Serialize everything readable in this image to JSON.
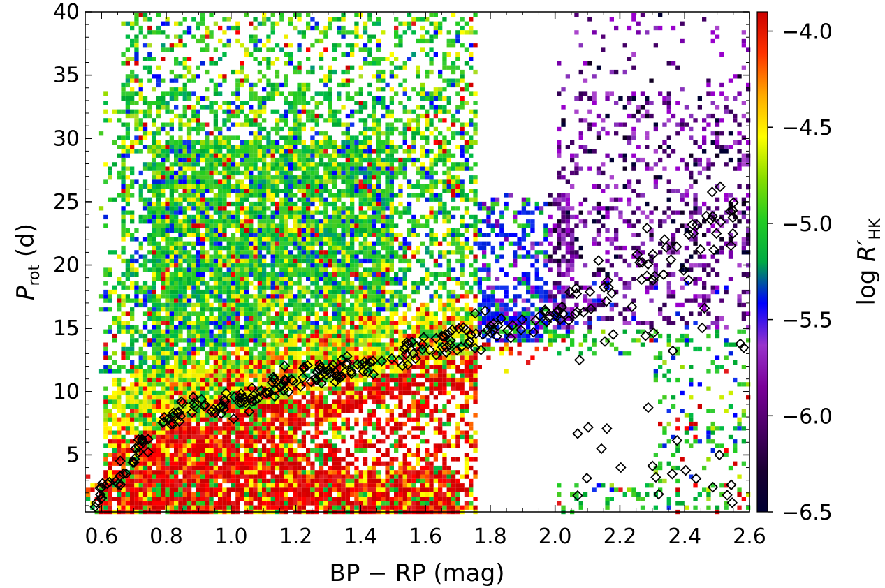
{
  "chart_data": {
    "type": "heatmap",
    "xlabel": "BP − RP (mag)",
    "ylabel_main": "P",
    "ylabel_sub": "rot",
    "ylabel_unit": " (d)",
    "colorbar_label_main": "log ",
    "colorbar_label_r": "R′",
    "colorbar_label_sub": "HK",
    "xlim": [
      0.55,
      2.6
    ],
    "ylim": [
      0.5,
      40
    ],
    "x_ticks": [
      0.6,
      0.8,
      1.0,
      1.2,
      1.4,
      1.6,
      1.8,
      2.0,
      2.2,
      2.4,
      2.6
    ],
    "x_tick_labels": [
      "0.6",
      "0.8",
      "1.0",
      "1.2",
      "1.4",
      "1.6",
      "1.8",
      "2.0",
      "2.2",
      "2.4",
      "2.6"
    ],
    "y_ticks": [
      5,
      10,
      15,
      20,
      25,
      30,
      35,
      40
    ],
    "y_tick_labels": [
      "5",
      "10",
      "15",
      "20",
      "25",
      "30",
      "35",
      "40"
    ],
    "colorbar": {
      "range": [
        -6.5,
        -3.9
      ],
      "ticks": [
        -4.0,
        -4.5,
        -5.0,
        -5.5,
        -6.0,
        -6.5
      ],
      "tick_labels": [
        "−4.0",
        "−4.5",
        "−5.0",
        "−5.5",
        "−6.0",
        "−6.5"
      ],
      "colors": [
        "#000033",
        "#1a0033",
        "#4a0066",
        "#7a0099",
        "#9933cc",
        "#0000ff",
        "#00aa44",
        "#22cc22",
        "#88dd00",
        "#ffff00",
        "#ffaa00",
        "#ff3300",
        "#cc0000"
      ]
    },
    "trend_x": [
      0.58,
      0.62,
      0.66,
      0.7,
      0.75,
      0.8,
      0.85,
      0.9,
      0.95,
      1.0,
      1.05,
      1.1,
      1.15,
      1.2,
      1.25,
      1.3,
      1.35,
      1.4,
      1.45,
      1.5,
      1.55,
      1.6,
      1.65,
      1.7,
      1.75,
      1.8,
      1.85,
      1.9,
      1.95,
      2.0,
      2.05,
      2.1,
      2.15,
      2.2,
      2.25,
      2.3,
      2.35,
      2.4,
      2.45,
      2.5,
      2.55
    ],
    "trend_y": [
      1.5,
      2.5,
      3.5,
      5.0,
      6.5,
      7.8,
      8.5,
      8.8,
      9.0,
      9.2,
      9.4,
      9.7,
      10.2,
      10.8,
      11.2,
      11.6,
      12.0,
      12.3,
      12.6,
      12.9,
      13.2,
      13.5,
      13.9,
      14.2,
      14.5,
      14.8,
      15.1,
      15.5,
      15.9,
      16.3,
      16.8,
      17.3,
      17.9,
      18.5,
      19.2,
      19.9,
      20.6,
      21.4,
      22.2,
      23.0,
      23.8
    ]
  }
}
